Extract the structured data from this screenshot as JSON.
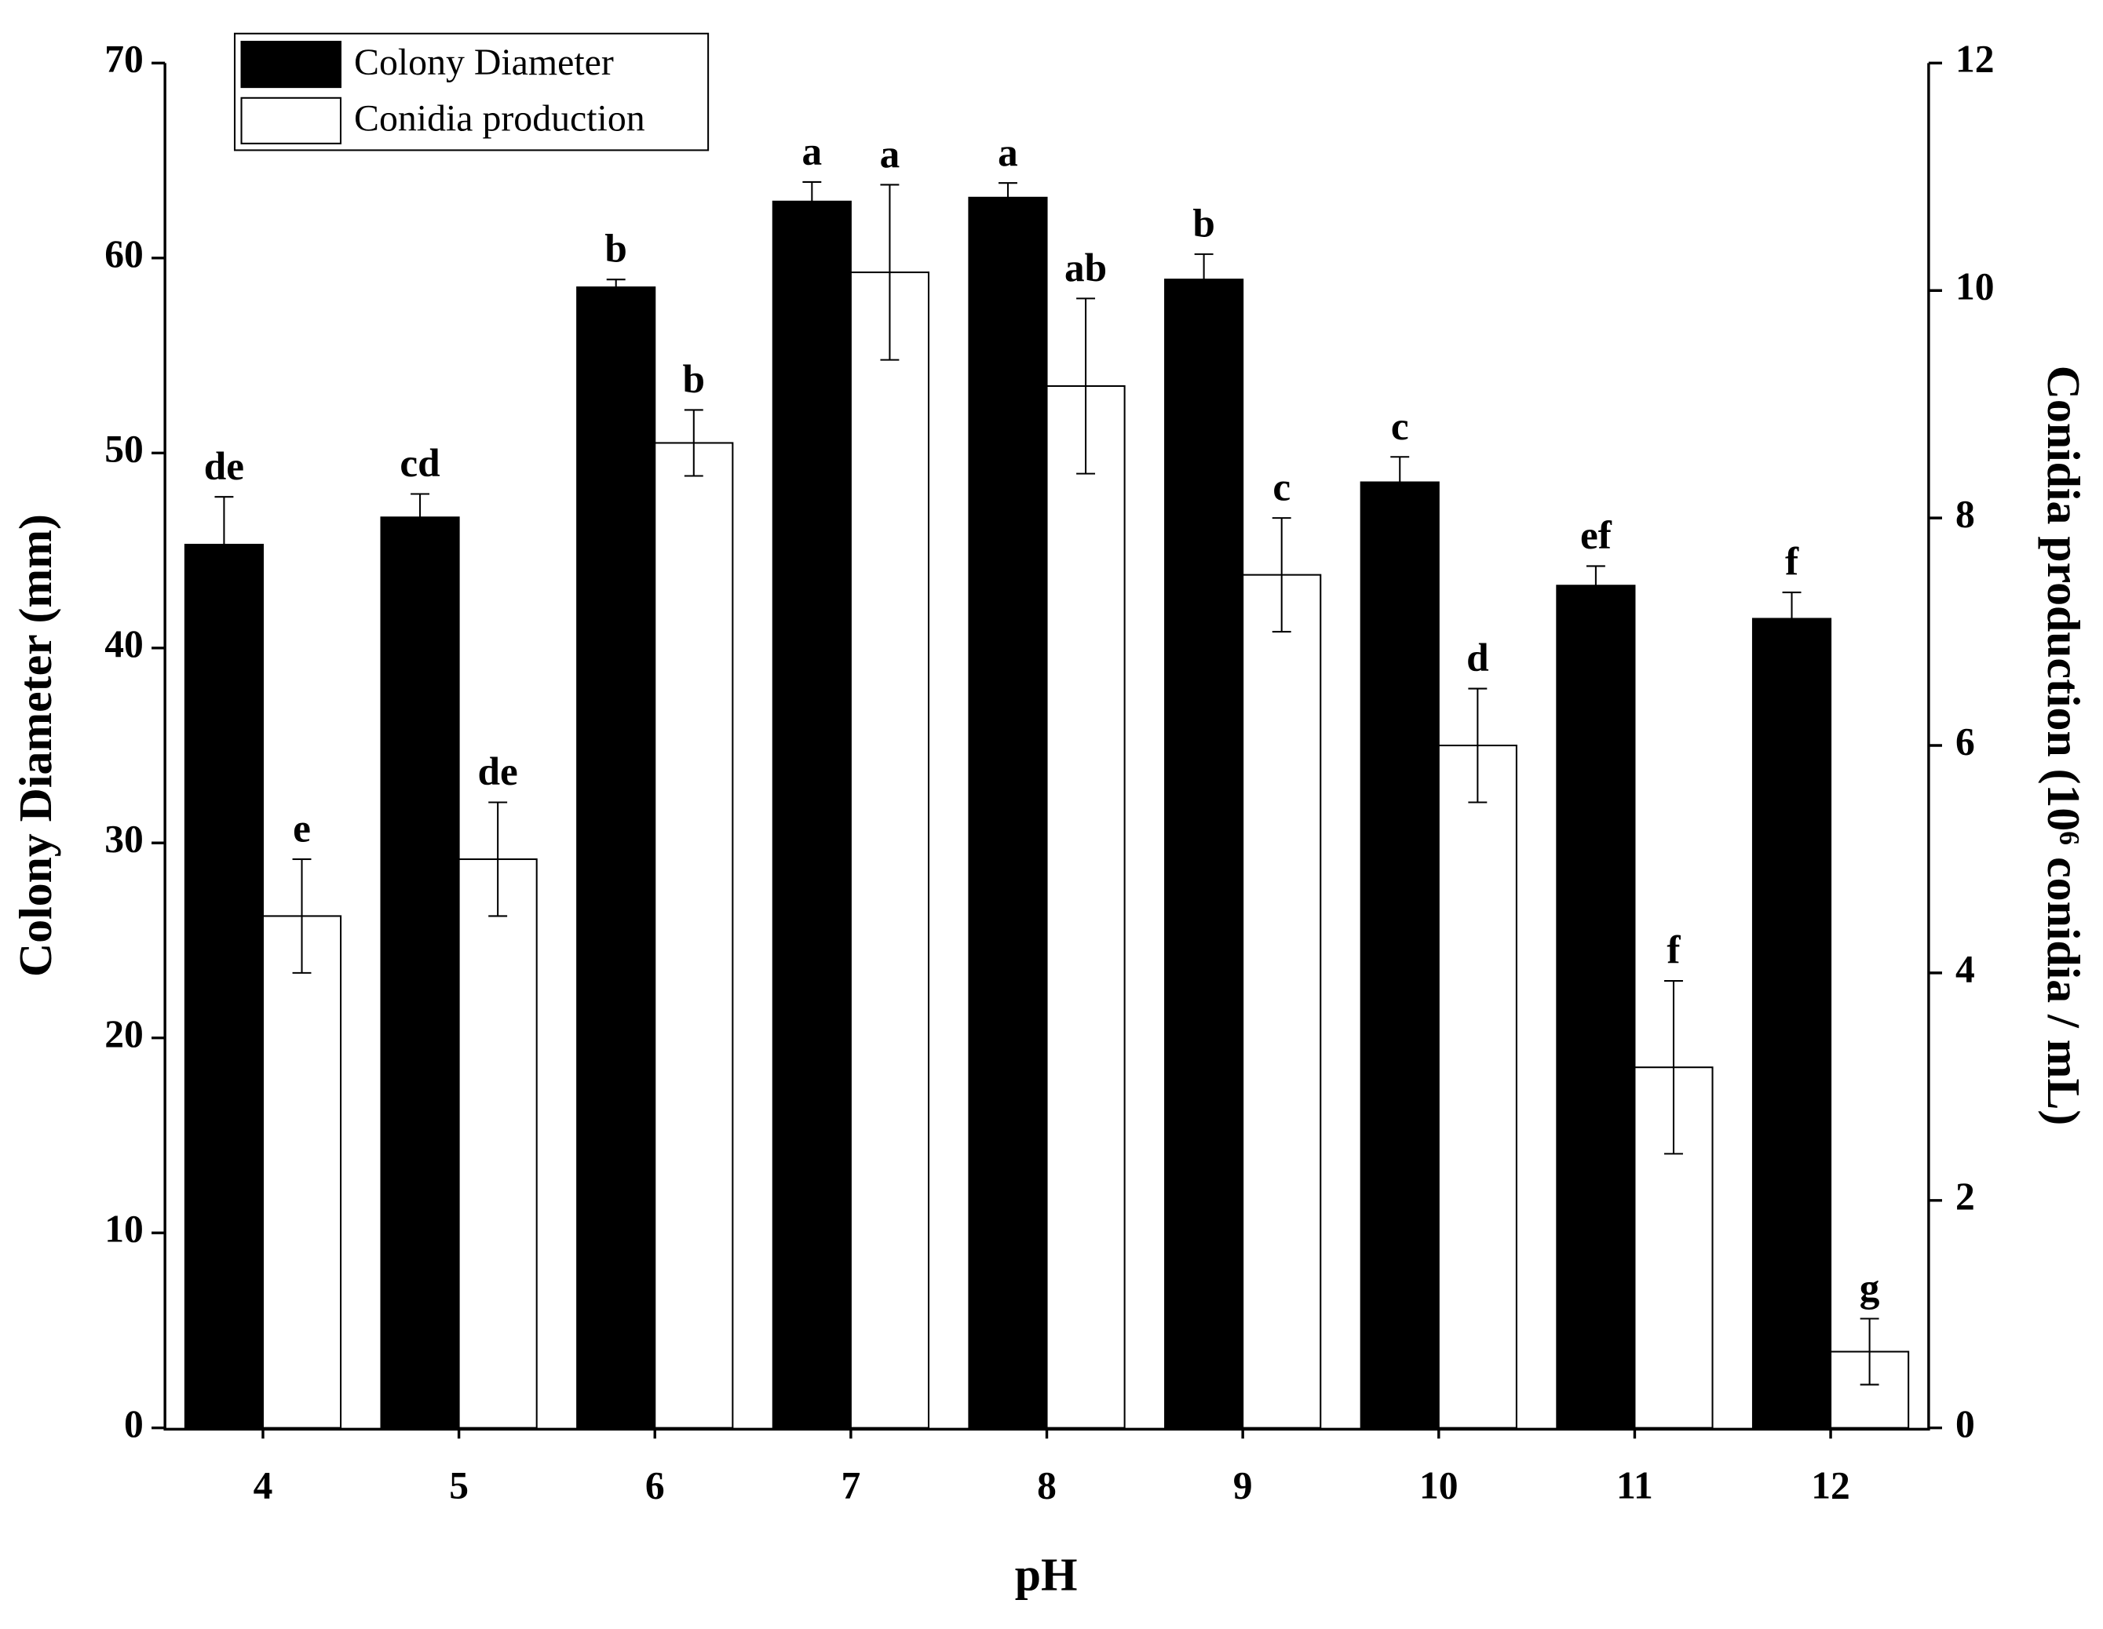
{
  "chart_data": {
    "type": "bar",
    "x_label": "pH",
    "y_label": "Colony Diameter (mm)",
    "y2_label": "Conidia production (10⁶ conidia / mL)",
    "categories": [
      "4",
      "5",
      "6",
      "7",
      "8",
      "9",
      "10",
      "11",
      "12"
    ],
    "ylim": [
      0,
      70
    ],
    "yticks": [
      0,
      10,
      20,
      30,
      40,
      50,
      60,
      70
    ],
    "y2lim": [
      0,
      12
    ],
    "y2ticks": [
      0,
      2,
      4,
      6,
      8,
      10,
      12
    ],
    "legend": "top-left",
    "series": [
      {
        "name": "Colony Diameter",
        "color": "#000000",
        "axis": "y",
        "values": [
          45.3,
          46.7,
          58.5,
          62.9,
          63.1,
          58.9,
          48.5,
          43.2,
          41.5
        ],
        "errors": [
          2.45,
          1.2,
          0.4,
          1.0,
          0.75,
          1.3,
          1.3,
          1.0,
          1.35
        ],
        "letters": [
          "de",
          "cd",
          "b",
          "a",
          "a",
          "b",
          "c",
          "ef",
          "f"
        ]
      },
      {
        "name": "Conidia production",
        "color": "#ffffff",
        "axis": "y2",
        "values": [
          4.5,
          5.0,
          8.66,
          10.16,
          9.16,
          7.5,
          6.0,
          3.17,
          0.67
        ],
        "errors": [
          0.5,
          0.5,
          0.29,
          0.77,
          0.77,
          0.5,
          0.5,
          0.76,
          0.29
        ],
        "letters": [
          "e",
          "de",
          "b",
          "a",
          "ab",
          "c",
          "d",
          "f",
          "g"
        ]
      }
    ]
  }
}
